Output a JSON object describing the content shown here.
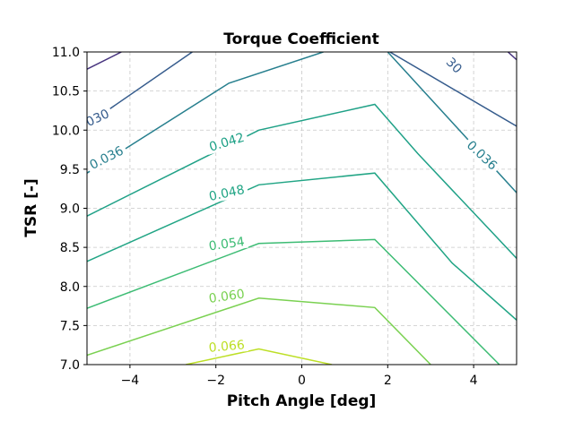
{
  "chart_data": {
    "type": "contour",
    "title": "Torque Coefficient",
    "xlabel": "Pitch Angle [deg]",
    "ylabel": "TSR [-]",
    "xlim": [
      -5,
      5
    ],
    "ylim": [
      7.0,
      11.0
    ],
    "xticks": [
      "−4",
      "−2",
      "0",
      "2",
      "4"
    ],
    "xtick_values": [
      -4,
      -2,
      0,
      2,
      4
    ],
    "yticks": [
      "7.0",
      "7.5",
      "8.0",
      "8.5",
      "9.0",
      "9.5",
      "10.0",
      "10.5",
      "11.0"
    ],
    "ytick_values": [
      7.0,
      7.5,
      8.0,
      8.5,
      9.0,
      9.5,
      10.0,
      10.5,
      11.0
    ],
    "grid": true,
    "contours": [
      {
        "level": 0.024,
        "color": "#46327e",
        "label": "",
        "segments": [
          [
            [
              -5.0,
              10.78
            ],
            [
              -4.2,
              11.0
            ]
          ],
          [
            [
              4.8,
              11.0
            ],
            [
              5.0,
              10.9
            ]
          ]
        ]
      },
      {
        "level": 0.03,
        "color": "#365c8d",
        "label": ".030",
        "segments": [
          [
            [
              -5.0,
              10.07
            ],
            [
              -2.55,
              11.0
            ]
          ],
          [
            [
              2.05,
              11.0
            ],
            [
              5.0,
              10.05
            ]
          ]
        ]
      },
      {
        "level": 0.036,
        "color": "#277f8e",
        "label": "0.036",
        "segments": [
          [
            [
              -5.0,
              9.45
            ],
            [
              -1.7,
              10.6
            ],
            [
              0.5,
              11.0
            ]
          ],
          [
            [
              2.0,
              11.0
            ],
            [
              5.0,
              9.2
            ]
          ]
        ]
      },
      {
        "level": 0.042,
        "color": "#1fa187",
        "label": "0.042",
        "segments": [
          [
            [
              -5.0,
              8.9
            ],
            [
              -1.0,
              10.0
            ],
            [
              1.7,
              10.33
            ],
            [
              2.7,
              9.7
            ],
            [
              5.0,
              8.36
            ]
          ]
        ]
      },
      {
        "level": 0.048,
        "color": "#21a585",
        "label": "0.048",
        "segments": [
          [
            [
              -5.0,
              8.32
            ],
            [
              -1.0,
              9.3
            ],
            [
              1.7,
              9.45
            ],
            [
              3.5,
              8.3
            ],
            [
              5.0,
              7.57
            ]
          ]
        ]
      },
      {
        "level": 0.054,
        "color": "#3dbc74",
        "label": "0.054",
        "segments": [
          [
            [
              -5.0,
              7.72
            ],
            [
              -1.0,
              8.55
            ],
            [
              1.7,
              8.6
            ],
            [
              4.6,
              7.0
            ]
          ]
        ]
      },
      {
        "level": 0.06,
        "color": "#7ad151",
        "label": "0.060",
        "segments": [
          [
            [
              -5.0,
              7.12
            ],
            [
              -1.0,
              7.85
            ],
            [
              1.7,
              7.73
            ],
            [
              3.0,
              7.0
            ]
          ]
        ]
      },
      {
        "level": 0.066,
        "color": "#bddf26",
        "label": "0.066",
        "segments": [
          [
            [
              -2.7,
              7.0
            ],
            [
              -1.0,
              7.2
            ],
            [
              0.7,
              7.0
            ]
          ]
        ]
      }
    ],
    "contour_labels": [
      {
        "text": "0.036",
        "color": "#277f8e",
        "x": -4.55,
        "y": 9.65,
        "rotation": -27
      },
      {
        "text": "0.042",
        "color": "#1fa187",
        "x": -1.75,
        "y": 9.85,
        "rotation": -17
      },
      {
        "text": "0.048",
        "color": "#21a585",
        "x": -1.75,
        "y": 9.2,
        "rotation": -12
      },
      {
        "text": "0.054",
        "color": "#3dbc74",
        "x": -1.75,
        "y": 8.55,
        "rotation": -8
      },
      {
        "text": "0.060",
        "color": "#7ad151",
        "x": -1.75,
        "y": 7.88,
        "rotation": -8
      },
      {
        "text": "0.066",
        "color": "#bddf26",
        "x": -1.75,
        "y": 7.24,
        "rotation": -5
      },
      {
        "text": ".030",
        "color": "#365c8d",
        "x": -4.8,
        "y": 10.15,
        "rotation": -25
      },
      {
        "text": "30",
        "color": "#365c8d",
        "x": 3.55,
        "y": 10.83,
        "rotation": 45
      },
      {
        "text": "0.036",
        "color": "#277f8e",
        "x": 4.2,
        "y": 9.68,
        "rotation": 43
      }
    ]
  }
}
